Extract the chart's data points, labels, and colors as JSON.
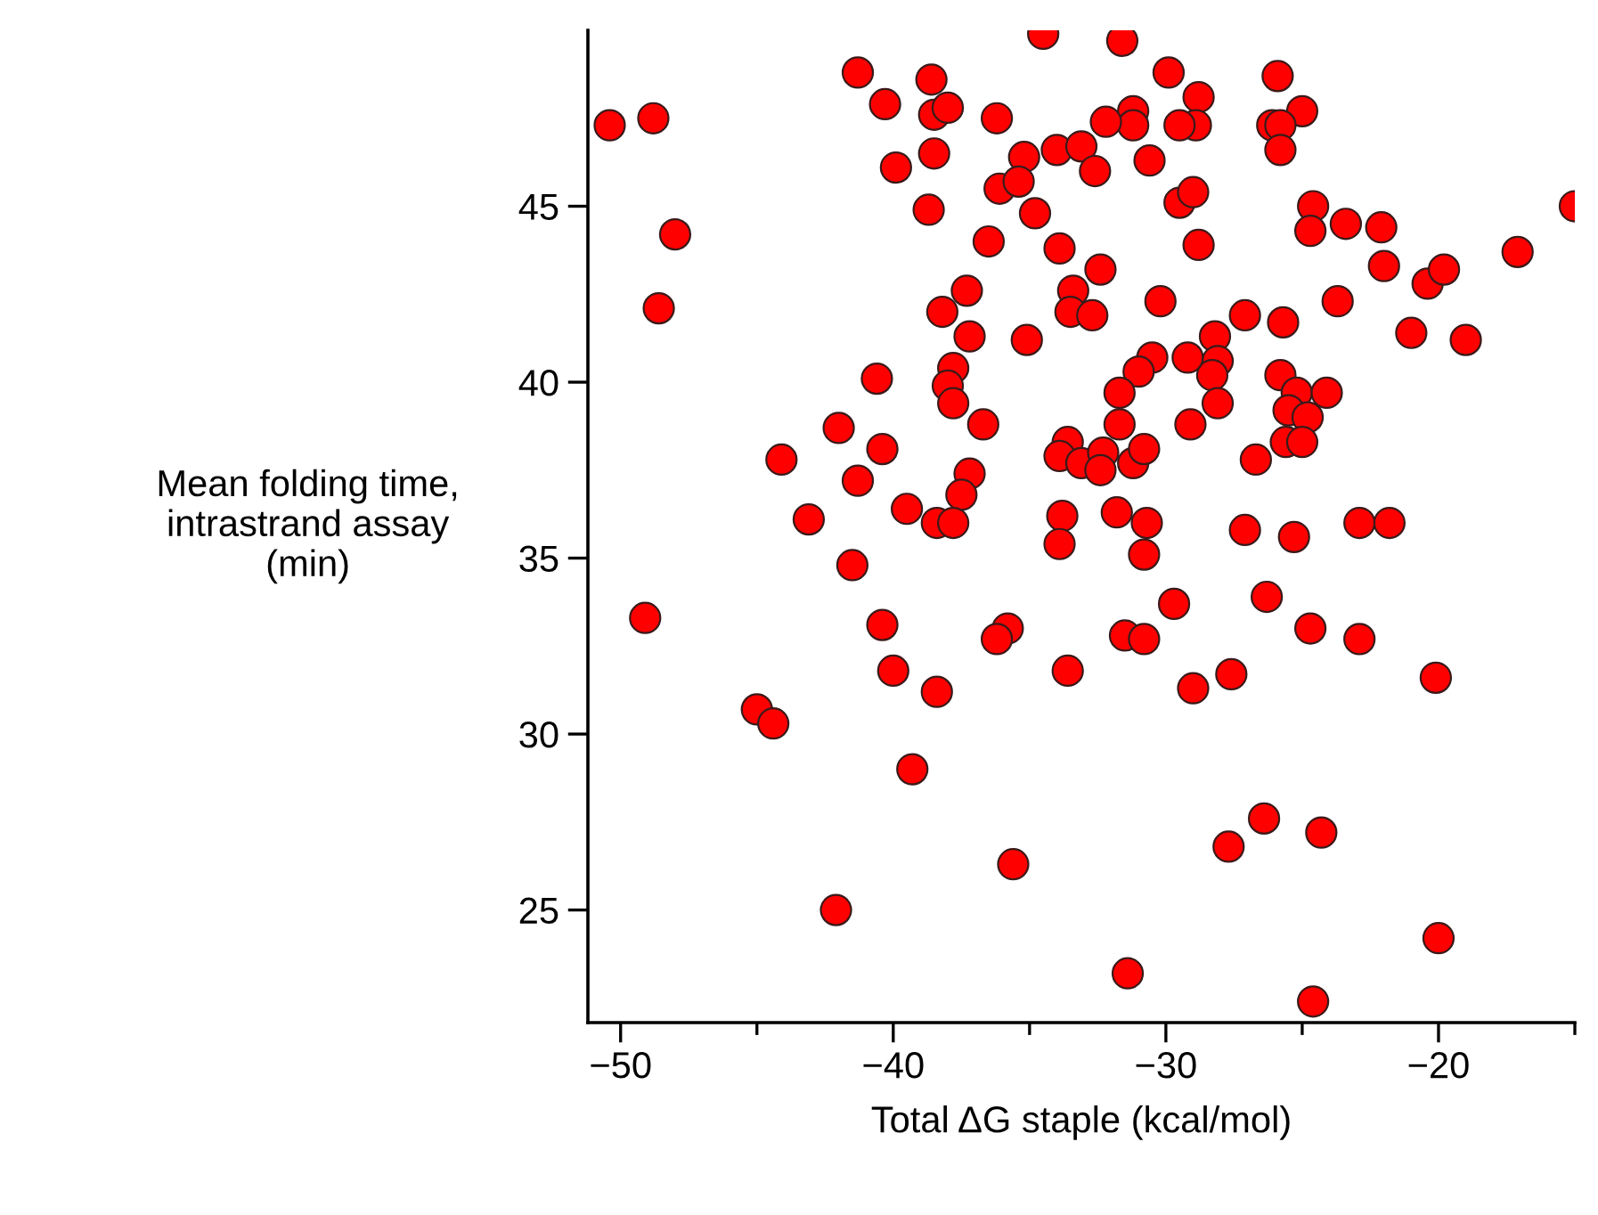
{
  "chart_data": {
    "type": "scatter",
    "xlabel": "Total ΔG staple (kcal/mol)",
    "ylabel": "Mean folding time,\nintrastrand assay\n(min)",
    "xlim": [
      -51.2,
      -15
    ],
    "ylim": [
      21.8,
      50
    ],
    "xticks": [
      -50,
      {
        "value": -45,
        "label": null
      },
      -40,
      {
        "value": -35,
        "label": null
      },
      -30,
      {
        "value": -25,
        "label": null
      },
      -20,
      {
        "value": -15,
        "label": null
      }
    ],
    "yticks": [
      25,
      30,
      35,
      40,
      45
    ],
    "grid": false,
    "marker": "circle",
    "series": [
      {
        "color": "#ff0000",
        "x": [
          -34.5,
          -41.3,
          -38.6,
          -40.3,
          -38.5,
          -38.0,
          -36.2,
          -50.4,
          -48.8,
          -39.9,
          -38.5,
          -35.2,
          -34.0,
          -33.1,
          -36.1,
          -35.4,
          -38.7,
          -34.8,
          -48.0,
          -36.5,
          -33.9,
          -37.3,
          -38.2,
          -33.4,
          -33.5,
          -48.6,
          -37.2,
          -35.1,
          -40.6,
          -37.8,
          -38.0,
          -37.8,
          -36.7,
          -42.0,
          -44.1,
          -40.4,
          -33.6,
          -33.9,
          -33.1,
          -41.3,
          -37.2,
          -37.5,
          -43.1,
          -39.5,
          -38.4,
          -37.8,
          -33.8,
          -33.9,
          -41.5,
          -49.1,
          -40.4,
          -40.0,
          -38.4,
          -35.8,
          -36.2,
          -33.6,
          -45.0,
          -44.4,
          -39.3,
          -35.6,
          -42.1,
          -31.6,
          -29.9,
          -25.9,
          -28.8,
          -28.9,
          -29.5,
          -31.2,
          -31.2,
          -32.2,
          -25.0,
          -26.1,
          -25.8,
          -25.8,
          -32.6,
          -30.6,
          -29.5,
          -29.0,
          -24.6,
          -24.7,
          -23.4,
          -22.1,
          -22.0,
          -15.0,
          -17.1,
          -20.4,
          -19.8,
          -28.8,
          -32.4,
          -32.7,
          -30.2,
          -27.1,
          -25.7,
          -23.7,
          -21.0,
          -19.0,
          -28.2,
          -28.1,
          -28.3,
          -28.1,
          -30.5,
          -31.0,
          -29.2,
          -31.7,
          -31.7,
          -29.1,
          -25.8,
          -25.2,
          -24.1,
          -25.5,
          -24.8,
          -25.6,
          -25.0,
          -26.7,
          -32.3,
          -32.4,
          -31.2,
          -30.8,
          -31.8,
          -30.7,
          -27.1,
          -25.3,
          -22.9,
          -21.8,
          -30.8,
          -29.7,
          -26.3,
          -24.7,
          -22.9,
          -31.5,
          -30.8,
          -29.0,
          -27.6,
          -20.1,
          -26.4,
          -27.7,
          -24.3,
          -20.0,
          -31.4,
          -24.6
        ],
        "values": [
          49.9,
          48.8,
          48.6,
          47.9,
          47.6,
          47.8,
          47.5,
          47.3,
          47.5,
          46.1,
          46.5,
          46.4,
          46.6,
          46.7,
          45.5,
          45.7,
          44.9,
          44.8,
          44.2,
          44.0,
          43.8,
          42.6,
          42.0,
          42.6,
          42.0,
          42.1,
          41.3,
          41.2,
          40.1,
          40.4,
          39.9,
          39.4,
          38.8,
          38.7,
          37.8,
          38.1,
          38.3,
          37.9,
          37.7,
          37.2,
          37.4,
          36.8,
          36.1,
          36.4,
          36.0,
          36.0,
          36.2,
          35.4,
          34.8,
          33.3,
          33.1,
          31.8,
          31.2,
          33.0,
          32.7,
          31.8,
          30.7,
          30.3,
          29.0,
          26.3,
          25.0,
          49.7,
          48.8,
          48.7,
          48.1,
          47.3,
          47.3,
          47.7,
          47.3,
          47.4,
          47.7,
          47.3,
          47.3,
          46.6,
          46.0,
          46.3,
          45.1,
          45.4,
          45.0,
          44.3,
          44.5,
          44.4,
          43.3,
          45.0,
          43.7,
          42.8,
          43.2,
          43.9,
          43.2,
          41.9,
          42.3,
          41.9,
          41.7,
          42.3,
          41.4,
          41.2,
          41.3,
          40.6,
          40.2,
          39.4,
          40.7,
          40.3,
          40.7,
          39.7,
          38.8,
          38.8,
          40.2,
          39.7,
          39.7,
          39.2,
          39.0,
          38.3,
          38.3,
          37.8,
          38.0,
          37.5,
          37.7,
          38.1,
          36.3,
          36.0,
          35.8,
          35.6,
          36.0,
          36.0,
          35.1,
          33.7,
          33.9,
          33.0,
          32.7,
          32.8,
          32.7,
          31.3,
          31.7,
          31.6,
          27.6,
          26.8,
          27.2,
          24.2,
          23.2,
          22.4
        ]
      }
    ]
  }
}
